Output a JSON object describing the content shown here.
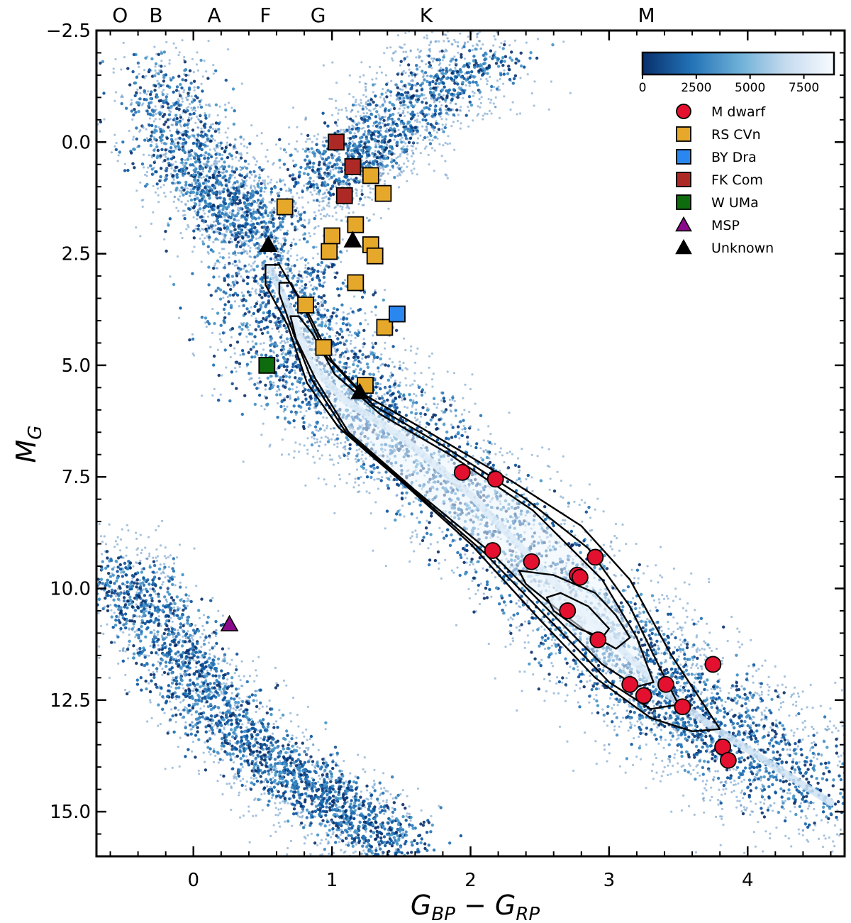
{
  "chart_data": {
    "type": "scatter",
    "title": "",
    "xlabel": "G_BP − G_RP",
    "ylabel": "M_G",
    "xlim": [
      -0.7,
      4.7
    ],
    "ylim": [
      16.0,
      -2.5
    ],
    "y_inverted": true,
    "x_ticks": [
      0,
      1,
      2,
      3,
      4
    ],
    "x_tick_labels": [
      "0",
      "1",
      "2",
      "3",
      "4"
    ],
    "y_ticks": [
      -2.5,
      0.0,
      2.5,
      5.0,
      7.5,
      10.0,
      12.5,
      15.0
    ],
    "y_tick_labels": [
      "−2.5",
      "0.0",
      "2.5",
      "5.0",
      "7.5",
      "10.0",
      "12.5",
      "15.0"
    ],
    "spectral_types": [
      {
        "label": "O",
        "x": -0.53
      },
      {
        "label": "B",
        "x": -0.27
      },
      {
        "label": "A",
        "x": 0.15
      },
      {
        "label": "F",
        "x": 0.52
      },
      {
        "label": "G",
        "x": 0.9
      },
      {
        "label": "K",
        "x": 1.68
      },
      {
        "label": "M",
        "x": 3.27
      }
    ],
    "colorbar": {
      "ticks": [
        0,
        2500,
        5000,
        7500
      ],
      "tick_labels": [
        "0",
        "2500",
        "5000",
        "7500"
      ],
      "max": 8900,
      "colors": [
        "#08306b",
        "#2171b5",
        "#6baed6",
        "#c6dbef",
        "#f7fbff"
      ]
    },
    "background_density": {
      "description": "Gaia HR diagram density (2D histogram) with contours",
      "main_sequence_ridge": [
        [
          0.55,
          2.8
        ],
        [
          0.7,
          3.8
        ],
        [
          0.85,
          5.0
        ],
        [
          1.1,
          5.8
        ],
        [
          1.5,
          6.6
        ],
        [
          2.0,
          7.9
        ],
        [
          2.4,
          9.2
        ],
        [
          2.8,
          10.5
        ],
        [
          3.1,
          11.4
        ],
        [
          3.4,
          12.3
        ],
        [
          3.7,
          13.0
        ],
        [
          4.1,
          13.8
        ],
        [
          4.6,
          14.8
        ]
      ],
      "giant_branch": [
        [
          0.9,
          1.0
        ],
        [
          1.1,
          0.4
        ],
        [
          1.3,
          0.0
        ],
        [
          1.5,
          -0.6
        ],
        [
          1.8,
          -1.4
        ],
        [
          2.2,
          -1.9
        ]
      ],
      "upper_main_sequence": [
        [
          -0.3,
          -1.7
        ],
        [
          -0.1,
          0.0
        ],
        [
          0.1,
          0.9
        ],
        [
          0.3,
          1.5
        ],
        [
          0.5,
          2.3
        ]
      ],
      "white_dwarf_sequence": [
        [
          -0.55,
          9.5
        ],
        [
          -0.3,
          10.6
        ],
        [
          0.0,
          12.0
        ],
        [
          0.3,
          13.2
        ],
        [
          0.7,
          14.2
        ],
        [
          1.1,
          15.0
        ],
        [
          1.5,
          15.8
        ]
      ]
    },
    "contours": [
      {
        "level": 1,
        "points": [
          [
            0.52,
            2.75
          ],
          [
            0.62,
            2.75
          ],
          [
            0.78,
            3.6
          ],
          [
            0.96,
            4.8
          ],
          [
            1.2,
            5.6
          ],
          [
            1.7,
            6.5
          ],
          [
            2.3,
            7.6
          ],
          [
            2.8,
            8.6
          ],
          [
            3.15,
            9.8
          ],
          [
            3.45,
            11.5
          ],
          [
            3.8,
            13.15
          ],
          [
            3.6,
            13.2
          ],
          [
            3.3,
            12.9
          ],
          [
            2.9,
            12.0
          ],
          [
            2.5,
            10.7
          ],
          [
            2.0,
            9.0
          ],
          [
            1.5,
            7.6
          ],
          [
            1.05,
            6.4
          ],
          [
            0.82,
            5.4
          ],
          [
            0.68,
            4.1
          ],
          [
            0.52,
            3.2
          ]
        ]
      },
      {
        "level": 2,
        "points": [
          [
            0.62,
            3.15
          ],
          [
            0.7,
            3.15
          ],
          [
            0.84,
            3.9
          ],
          [
            1.0,
            4.9
          ],
          [
            1.3,
            5.9
          ],
          [
            1.8,
            6.8
          ],
          [
            2.4,
            8.0
          ],
          [
            2.85,
            9.1
          ],
          [
            3.15,
            10.4
          ],
          [
            3.37,
            11.8
          ],
          [
            3.5,
            12.6
          ],
          [
            3.3,
            12.7
          ],
          [
            3.0,
            12.1
          ],
          [
            2.6,
            10.8
          ],
          [
            2.1,
            9.2
          ],
          [
            1.55,
            7.7
          ],
          [
            1.1,
            6.5
          ],
          [
            0.85,
            5.3
          ],
          [
            0.7,
            4.1
          ],
          [
            0.62,
            3.4
          ]
        ]
      },
      {
        "level": 3,
        "points": [
          [
            0.7,
            3.9
          ],
          [
            0.76,
            3.9
          ],
          [
            0.86,
            4.3
          ],
          [
            1.02,
            5.2
          ],
          [
            1.35,
            6.1
          ],
          [
            1.85,
            7.0
          ],
          [
            2.45,
            8.25
          ],
          [
            2.95,
            9.8
          ],
          [
            3.2,
            11.1
          ],
          [
            3.32,
            12.1
          ],
          [
            3.2,
            12.2
          ],
          [
            2.95,
            11.7
          ],
          [
            2.6,
            10.6
          ],
          [
            2.15,
            9.2
          ],
          [
            1.6,
            7.8
          ],
          [
            1.12,
            6.5
          ],
          [
            0.88,
            5.3
          ],
          [
            0.74,
            4.4
          ]
        ]
      },
      {
        "level": 4,
        "points": [
          [
            2.35,
            9.6
          ],
          [
            2.6,
            9.7
          ],
          [
            2.9,
            10.1
          ],
          [
            3.05,
            10.6
          ],
          [
            3.15,
            11.1
          ],
          [
            3.05,
            11.35
          ],
          [
            2.85,
            11.0
          ],
          [
            2.6,
            10.4
          ],
          [
            2.4,
            9.9
          ]
        ]
      },
      {
        "level": 5,
        "points": [
          [
            2.55,
            10.2
          ],
          [
            2.65,
            10.1
          ],
          [
            2.85,
            10.4
          ],
          [
            3.0,
            10.9
          ],
          [
            2.95,
            11.1
          ],
          [
            2.78,
            10.9
          ],
          [
            2.6,
            10.5
          ]
        ]
      }
    ],
    "series": [
      {
        "name": "M dwarf",
        "marker": "circle",
        "color": "#e3112f",
        "points": [
          [
            1.94,
            7.4
          ],
          [
            2.18,
            7.55
          ],
          [
            2.16,
            9.15
          ],
          [
            2.44,
            9.4
          ],
          [
            2.77,
            9.7
          ],
          [
            2.79,
            9.75
          ],
          [
            2.9,
            9.3
          ],
          [
            2.7,
            10.5
          ],
          [
            2.92,
            11.15
          ],
          [
            3.15,
            12.15
          ],
          [
            3.25,
            12.4
          ],
          [
            3.41,
            12.15
          ],
          [
            3.53,
            12.65
          ],
          [
            3.75,
            11.7
          ],
          [
            3.82,
            13.55
          ],
          [
            3.86,
            13.85
          ]
        ]
      },
      {
        "name": "RS CVn",
        "marker": "square",
        "color": "#e6a82a",
        "points": [
          [
            0.66,
            1.45
          ],
          [
            1.0,
            2.1
          ],
          [
            0.98,
            2.45
          ],
          [
            1.17,
            1.85
          ],
          [
            1.28,
            0.75
          ],
          [
            1.37,
            1.15
          ],
          [
            1.28,
            2.3
          ],
          [
            1.31,
            2.55
          ],
          [
            1.17,
            3.15
          ],
          [
            0.81,
            3.65
          ],
          [
            0.94,
            4.6
          ],
          [
            1.38,
            4.15
          ],
          [
            1.24,
            5.45
          ]
        ]
      },
      {
        "name": "BY Dra",
        "marker": "square",
        "color": "#2a87f0",
        "points": [
          [
            1.47,
            3.85
          ]
        ]
      },
      {
        "name": "FK Com",
        "marker": "square",
        "color": "#ad2926",
        "points": [
          [
            1.03,
            0.0
          ],
          [
            1.15,
            0.55
          ],
          [
            1.09,
            1.2
          ]
        ]
      },
      {
        "name": "W UMa",
        "marker": "square",
        "color": "#0e6b0e",
        "points": [
          [
            0.53,
            5.0
          ]
        ]
      },
      {
        "name": "MSP",
        "marker": "triangle",
        "color": "#8b0a8b",
        "points": [
          [
            0.26,
            10.8
          ]
        ]
      },
      {
        "name": "Unknown",
        "marker": "triangle",
        "color": "#000000",
        "points": [
          [
            0.54,
            2.3
          ],
          [
            1.15,
            2.2
          ],
          [
            1.2,
            5.6
          ]
        ]
      }
    ],
    "legend": {
      "location": "top-right",
      "entries": [
        "M dwarf",
        "RS CVn",
        "BY Dra",
        "FK Com",
        "W UMa",
        "MSP",
        "Unknown"
      ]
    }
  }
}
